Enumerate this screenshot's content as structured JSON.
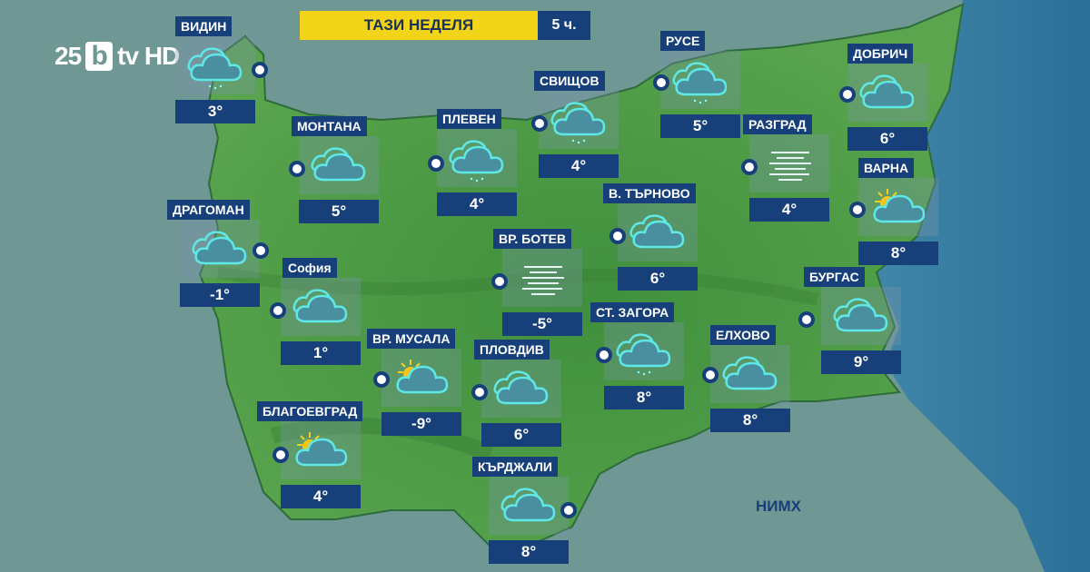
{
  "logo": {
    "number": "25",
    "letter": "b",
    "text": "tv HD"
  },
  "header": {
    "title": "ТАЗИ НЕДЕЛЯ",
    "time": "5 ч."
  },
  "source": "НИМХ",
  "colors": {
    "banner": "#f2d418",
    "label_bg": "#17407a",
    "land": "#4f9a4a",
    "sea": "#2f7fa8",
    "icon": "#5fe8e8"
  },
  "cities": [
    {
      "name": "ВИДИН",
      "temp": "3°",
      "icon": "cloud-drizzle-icon"
    },
    {
      "name": "МОНТАНА",
      "temp": "5°",
      "icon": "cloud-icon"
    },
    {
      "name": "ПЛЕВЕН",
      "temp": "4°",
      "icon": "cloud-drizzle-icon"
    },
    {
      "name": "СВИЩОВ",
      "temp": "4°",
      "icon": "cloud-drizzle-icon"
    },
    {
      "name": "РУСЕ",
      "temp": "5°",
      "icon": "cloud-drizzle-icon"
    },
    {
      "name": "ДОБРИЧ",
      "temp": "6°",
      "icon": "cloud-icon"
    },
    {
      "name": "РАЗГРАД",
      "temp": "4°",
      "icon": "fog-icon"
    },
    {
      "name": "ВАРНА",
      "temp": "8°",
      "icon": "sun-cloud-icon"
    },
    {
      "name": "В. ТЪРНОВО",
      "temp": "6°",
      "icon": "cloud-icon"
    },
    {
      "name": "ДРАГОМАН",
      "temp": "-1°",
      "icon": "cloud-icon"
    },
    {
      "name": "София",
      "temp": "1°",
      "icon": "cloud-icon"
    },
    {
      "name": "ВР. БОТЕВ",
      "temp": "-5°",
      "icon": "fog-icon"
    },
    {
      "name": "СТ. ЗАГОРА",
      "temp": "8°",
      "icon": "cloud-drizzle-icon"
    },
    {
      "name": "БУРГАС",
      "temp": "9°",
      "icon": "cloud-icon"
    },
    {
      "name": "ЕЛХОВО",
      "temp": "8°",
      "icon": "cloud-icon"
    },
    {
      "name": "ВР. МУСАЛА",
      "temp": "-9°",
      "icon": "sun-cloud-icon"
    },
    {
      "name": "ПЛОВДИВ",
      "temp": "6°",
      "icon": "cloud-icon"
    },
    {
      "name": "БЛАГОЕВГРАД",
      "temp": "4°",
      "icon": "sun-cloud-icon"
    },
    {
      "name": "КЪРДЖАЛИ",
      "temp": "8°",
      "icon": "cloud-icon"
    }
  ]
}
